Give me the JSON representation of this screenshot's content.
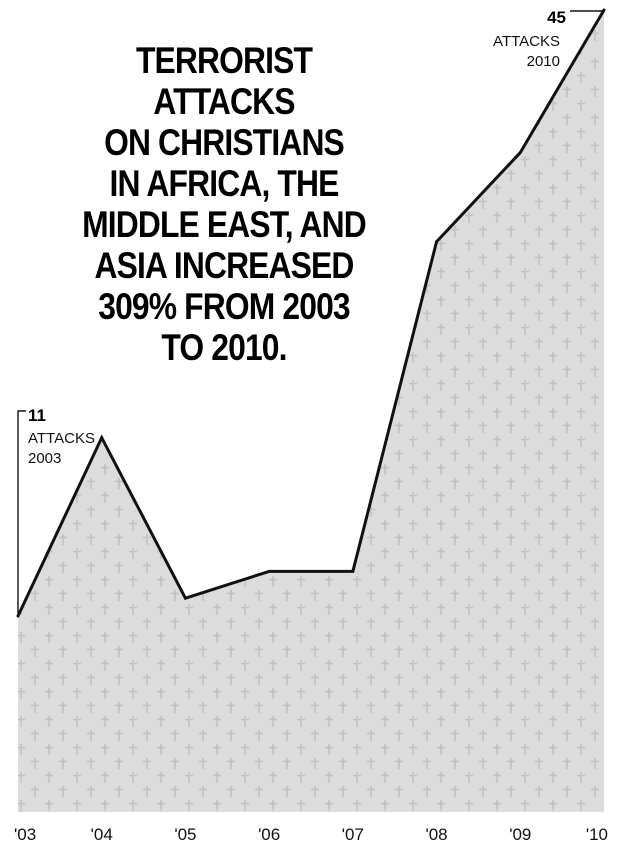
{
  "chart_data": {
    "type": "area",
    "title": "TERRORIST ATTACKS ON CHRISTIANS IN AFRICA, THE MIDDLE EAST, AND ASIA INCREASED 309% FROM 2003 TO 2010.",
    "categories": [
      "'03",
      "'04",
      "'05",
      "'06",
      "'07",
      "'08",
      "'09",
      "'10"
    ],
    "values": [
      11,
      21,
      12,
      13.5,
      13.5,
      32,
      37,
      45
    ],
    "ylim": [
      0,
      45
    ],
    "grid": false,
    "colors": {
      "fill": "#dcdcdc",
      "line": "#111111",
      "pattern": "cross-icon"
    },
    "annotations": [
      {
        "index": 0,
        "number": "11",
        "text1": "ATTACKS",
        "text2": "2003"
      },
      {
        "index": 7,
        "number": "45",
        "text1": "ATTACKS",
        "text2": "2010"
      }
    ]
  }
}
